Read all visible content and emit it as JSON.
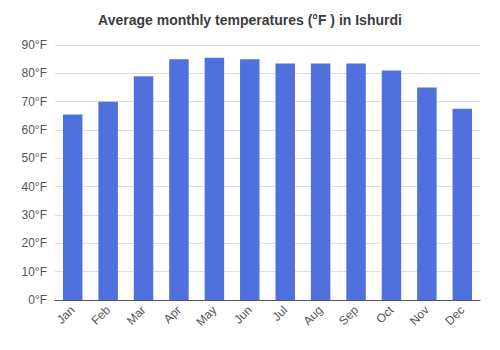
{
  "chart_data": {
    "type": "bar",
    "title": "Average monthly temperatures (°F ) in Ishurdi",
    "categories": [
      "Jan",
      "Feb",
      "Mar",
      "Apr",
      "May",
      "Jun",
      "Jul",
      "Aug",
      "Sep",
      "Oct",
      "Nov",
      "Dec"
    ],
    "values": [
      65.5,
      70.0,
      79.0,
      85.0,
      85.5,
      85.0,
      83.5,
      83.5,
      83.5,
      81.0,
      75.0,
      67.5
    ],
    "ylim": [
      0,
      90
    ],
    "yticks": [
      {
        "value": 0,
        "label": "0°F"
      },
      {
        "value": 10,
        "label": "10°F"
      },
      {
        "value": 20,
        "label": "20°F"
      },
      {
        "value": 30,
        "label": "30°F"
      },
      {
        "value": 40,
        "label": "40°F"
      },
      {
        "value": 50,
        "label": "50°F"
      },
      {
        "value": 60,
        "label": "60°F"
      },
      {
        "value": 70,
        "label": "70°F"
      },
      {
        "value": 80,
        "label": "80°F"
      },
      {
        "value": 90,
        "label": "90°F"
      }
    ],
    "grid": true
  }
}
